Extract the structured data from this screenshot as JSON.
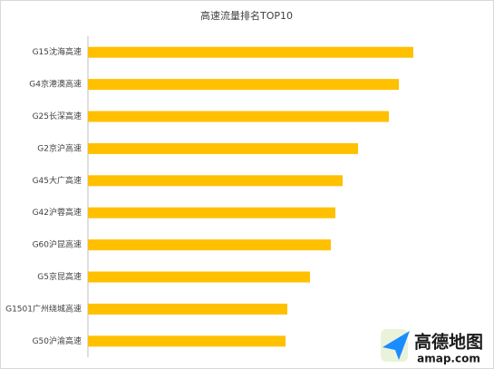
{
  "chart_data": {
    "type": "bar",
    "title": "高速流量排名TOP10",
    "categories": [
      "G15沈海高速",
      "G4京港澳高速",
      "G25长深高速",
      "G2京沪高速",
      "G45大广高速",
      "G42沪蓉高速",
      "G60沪昆高速",
      "G5京昆高速",
      "G1501广州绕城高速",
      "G50沪渝高速"
    ],
    "values": [
      359,
      343,
      332,
      298,
      281,
      273,
      268,
      245,
      220,
      218
    ],
    "color": "#ffc000"
  },
  "logo": {
    "name": "高德地图",
    "url": "amap.com"
  }
}
